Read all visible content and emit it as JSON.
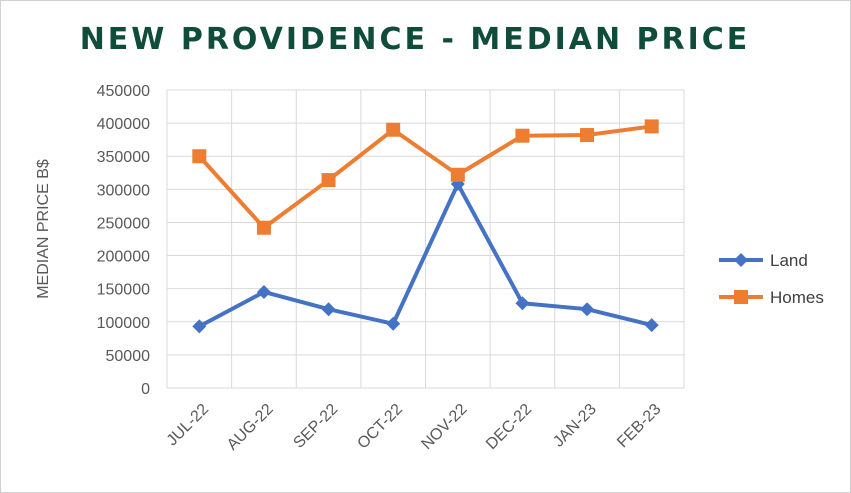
{
  "chart_data": {
    "type": "line",
    "title": "NEW PROVIDENCE - MEDIAN PRICE",
    "ylabel": "MEDIAN PRICE B$",
    "xlabel": "",
    "categories": [
      "JUL-22",
      "AUG-22",
      "SEP-22",
      "OCT-22",
      "NOV-22",
      "DEC-22",
      "JAN-23",
      "FEB-23"
    ],
    "ylim": [
      0,
      450000
    ],
    "yticks": [
      0,
      50000,
      100000,
      150000,
      200000,
      250000,
      300000,
      350000,
      400000,
      450000
    ],
    "grid": true,
    "legend_position": "right",
    "series": [
      {
        "name": "Land",
        "color": "#4472C4",
        "marker": "diamond",
        "values": [
          93000,
          145000,
          119000,
          97000,
          308000,
          128000,
          119000,
          95000
        ]
      },
      {
        "name": "Homes",
        "color": "#ED7D31",
        "marker": "square",
        "values": [
          350000,
          242000,
          314000,
          390000,
          322000,
          381000,
          382000,
          395000
        ]
      }
    ],
    "title_color": "#0F4C3A"
  }
}
